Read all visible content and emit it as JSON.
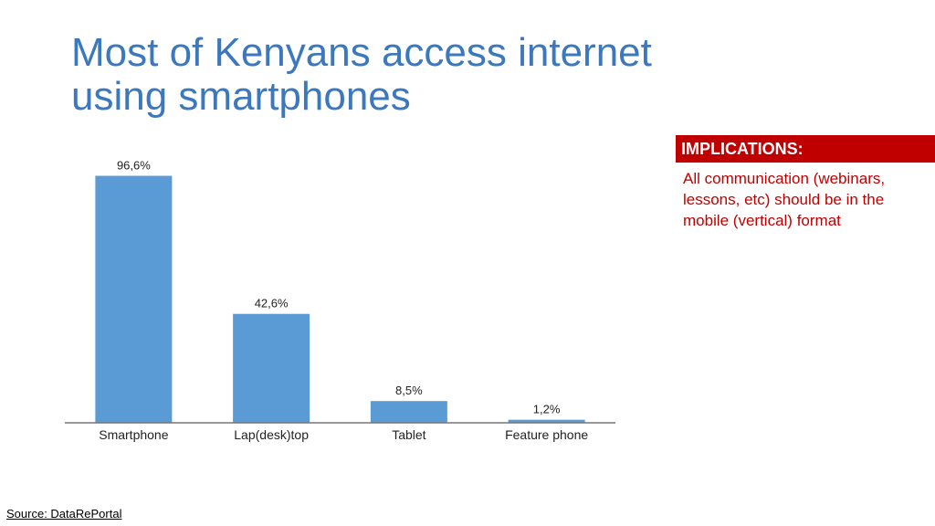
{
  "slide": {
    "title_line1": "Most of Kenyans access internet",
    "title_line2": "using smartphones",
    "implications_title": "IMPLICATIONS:",
    "implications_text": "All communication (webinars, lessons, etc) should be in the mobile (vertical) format",
    "source": "Source: DataRePortal"
  },
  "colors": {
    "bar": "#5b9bd5",
    "title": "#3b78bd",
    "accent": "#c00000"
  },
  "chart_data": {
    "type": "bar",
    "categories": [
      "Smartphone",
      "Lap(desk)top",
      "Tablet",
      "Feature phone"
    ],
    "values": [
      96.6,
      42.6,
      8.5,
      1.2
    ],
    "value_labels": [
      "96,6%",
      "42,6%",
      "8,5%",
      "1,2%"
    ],
    "title": "",
    "xlabel": "",
    "ylabel": "",
    "ylim": [
      0,
      100
    ],
    "grid": false,
    "legend": "none"
  }
}
